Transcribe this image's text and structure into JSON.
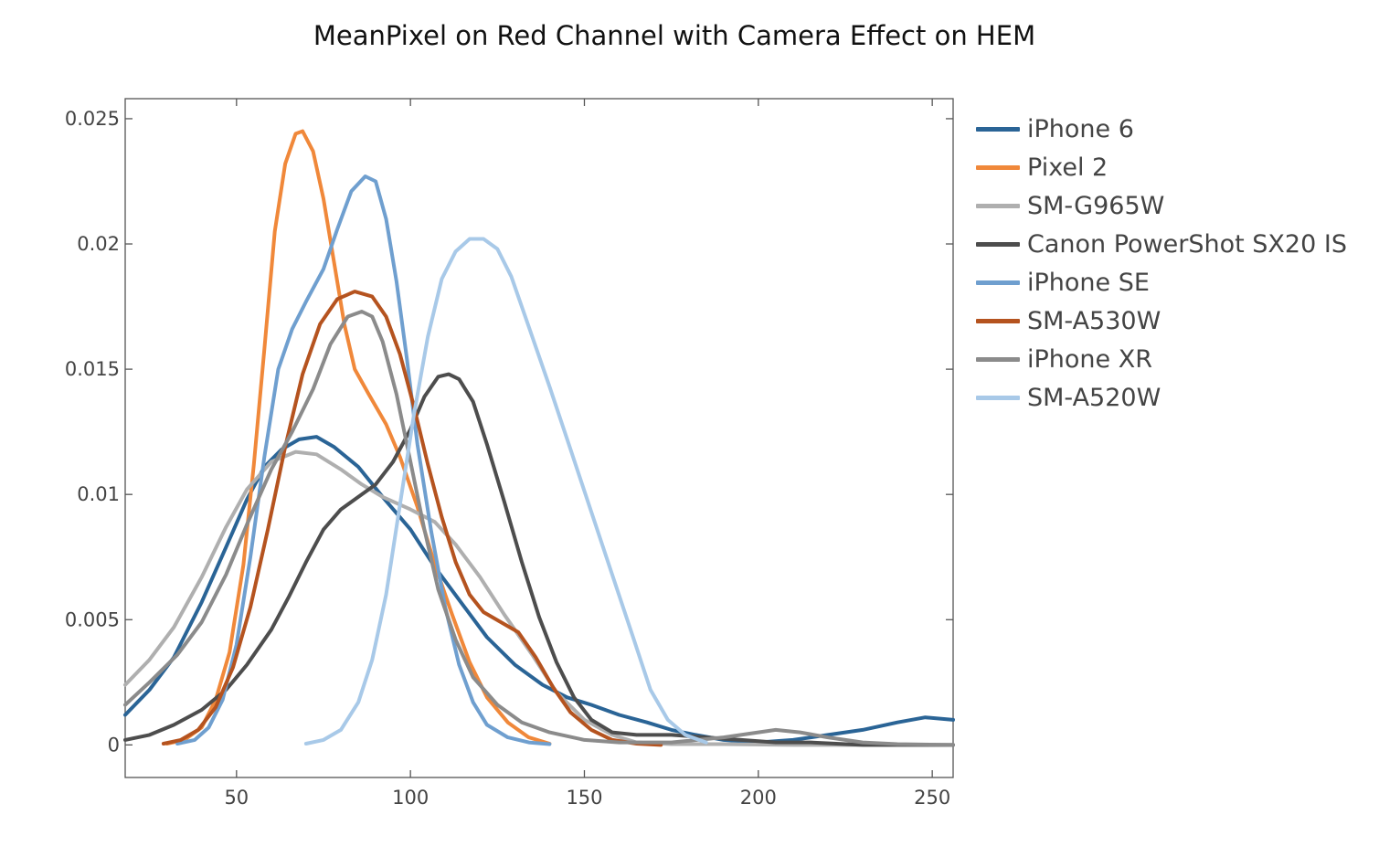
{
  "chart_data": {
    "type": "line",
    "title": "MeanPixel on Red Channel with Camera Effect on HEM",
    "xlabel": "",
    "ylabel": "",
    "xlim": [
      18,
      256
    ],
    "ylim": [
      -0.0013,
      0.0258
    ],
    "x_ticks": [
      50,
      100,
      150,
      200,
      250
    ],
    "y_ticks": [
      0,
      0.005,
      0.01,
      0.015,
      0.02,
      0.025
    ],
    "x_tick_labels": [
      "50",
      "100",
      "150",
      "200",
      "250"
    ],
    "y_tick_labels": [
      "0",
      "0.005",
      "0.01",
      "0.015",
      "0.02",
      "0.025"
    ],
    "grid": false,
    "legend_position": "right",
    "series": [
      {
        "name": "iPhone 6",
        "color": "#2a6496",
        "points": [
          [
            18,
            0.0012
          ],
          [
            25,
            0.0022
          ],
          [
            32,
            0.0035
          ],
          [
            40,
            0.0057
          ],
          [
            47,
            0.0079
          ],
          [
            53,
            0.0098
          ],
          [
            58,
            0.0111
          ],
          [
            63,
            0.0118
          ],
          [
            68,
            0.0122
          ],
          [
            73,
            0.0123
          ],
          [
            78,
            0.0119
          ],
          [
            85,
            0.0111
          ],
          [
            92,
            0.0099
          ],
          [
            100,
            0.0086
          ],
          [
            107,
            0.0071
          ],
          [
            115,
            0.0056
          ],
          [
            122,
            0.0043
          ],
          [
            130,
            0.0032
          ],
          [
            138,
            0.0024
          ],
          [
            145,
            0.0019
          ],
          [
            152,
            0.0016
          ],
          [
            160,
            0.0012
          ],
          [
            168,
            0.0009
          ],
          [
            175,
            0.0006
          ],
          [
            182,
            0.0004
          ],
          [
            190,
            0.0002
          ],
          [
            200,
            0.0001
          ],
          [
            210,
            0.0002
          ],
          [
            220,
            0.0004
          ],
          [
            230,
            0.0006
          ],
          [
            240,
            0.0009
          ],
          [
            248,
            0.0011
          ],
          [
            256,
            0.001
          ]
        ]
      },
      {
        "name": "Pixel 2",
        "color": "#f0883a",
        "points": [
          [
            30,
            5e-05
          ],
          [
            35,
            0.0002
          ],
          [
            40,
            0.0007
          ],
          [
            44,
            0.0018
          ],
          [
            48,
            0.0037
          ],
          [
            52,
            0.0072
          ],
          [
            55,
            0.0112
          ],
          [
            58,
            0.0158
          ],
          [
            61,
            0.0205
          ],
          [
            64,
            0.0232
          ],
          [
            67,
            0.0244
          ],
          [
            69,
            0.0245
          ],
          [
            72,
            0.0237
          ],
          [
            75,
            0.0218
          ],
          [
            78,
            0.0193
          ],
          [
            81,
            0.0168
          ],
          [
            84,
            0.015
          ],
          [
            88,
            0.014
          ],
          [
            93,
            0.0128
          ],
          [
            97,
            0.0115
          ],
          [
            102,
            0.0095
          ],
          [
            107,
            0.0072
          ],
          [
            112,
            0.0052
          ],
          [
            117,
            0.0033
          ],
          [
            122,
            0.0019
          ],
          [
            128,
            0.0009
          ],
          [
            134,
            0.0003
          ],
          [
            140,
            5e-05
          ]
        ]
      },
      {
        "name": "SM-G965W",
        "color": "#afafaf",
        "points": [
          [
            18,
            0.0024
          ],
          [
            25,
            0.0034
          ],
          [
            32,
            0.0047
          ],
          [
            40,
            0.0067
          ],
          [
            47,
            0.0087
          ],
          [
            53,
            0.0102
          ],
          [
            60,
            0.0113
          ],
          [
            67,
            0.0117
          ],
          [
            73,
            0.0116
          ],
          [
            80,
            0.011
          ],
          [
            86,
            0.0104
          ],
          [
            92,
            0.0099
          ],
          [
            100,
            0.0094
          ],
          [
            107,
            0.0089
          ],
          [
            113,
            0.008
          ],
          [
            120,
            0.0067
          ],
          [
            127,
            0.0052
          ],
          [
            135,
            0.0036
          ],
          [
            142,
            0.0021
          ],
          [
            150,
            0.001
          ],
          [
            158,
            0.0004
          ],
          [
            165,
            0.0001
          ],
          [
            175,
            3e-05
          ],
          [
            190,
            3e-05
          ],
          [
            210,
            0.0
          ],
          [
            240,
            0.0
          ],
          [
            256,
            0.0
          ]
        ]
      },
      {
        "name": "Canon PowerShot SX20 IS",
        "color": "#4d4d4d",
        "points": [
          [
            18,
            0.0002
          ],
          [
            25,
            0.0004
          ],
          [
            32,
            0.0008
          ],
          [
            40,
            0.0014
          ],
          [
            47,
            0.0022
          ],
          [
            53,
            0.0032
          ],
          [
            60,
            0.0046
          ],
          [
            65,
            0.0059
          ],
          [
            70,
            0.0073
          ],
          [
            75,
            0.0086
          ],
          [
            80,
            0.0094
          ],
          [
            85,
            0.0099
          ],
          [
            90,
            0.0104
          ],
          [
            95,
            0.0113
          ],
          [
            100,
            0.0126
          ],
          [
            104,
            0.0139
          ],
          [
            108,
            0.0147
          ],
          [
            111,
            0.0148
          ],
          [
            114,
            0.0146
          ],
          [
            118,
            0.0137
          ],
          [
            122,
            0.012
          ],
          [
            127,
            0.0097
          ],
          [
            132,
            0.0073
          ],
          [
            137,
            0.0051
          ],
          [
            142,
            0.0033
          ],
          [
            147,
            0.0019
          ],
          [
            152,
            0.001
          ],
          [
            158,
            0.0005
          ],
          [
            165,
            0.0004
          ],
          [
            175,
            0.0004
          ],
          [
            185,
            0.0003
          ],
          [
            195,
            0.0002
          ],
          [
            205,
            0.0001
          ],
          [
            215,
            0.0001
          ],
          [
            230,
            0.0
          ],
          [
            256,
            0.0
          ]
        ]
      },
      {
        "name": "iPhone SE",
        "color": "#6f9fcf",
        "points": [
          [
            33,
            5e-05
          ],
          [
            38,
            0.0002
          ],
          [
            42,
            0.0007
          ],
          [
            46,
            0.0018
          ],
          [
            50,
            0.004
          ],
          [
            54,
            0.0075
          ],
          [
            58,
            0.0115
          ],
          [
            62,
            0.015
          ],
          [
            66,
            0.0166
          ],
          [
            70,
            0.0177
          ],
          [
            75,
            0.019
          ],
          [
            79,
            0.0206
          ],
          [
            83,
            0.0221
          ],
          [
            87,
            0.0227
          ],
          [
            90,
            0.0225
          ],
          [
            93,
            0.021
          ],
          [
            96,
            0.0185
          ],
          [
            99,
            0.0154
          ],
          [
            102,
            0.012
          ],
          [
            106,
            0.0085
          ],
          [
            110,
            0.0055
          ],
          [
            114,
            0.0032
          ],
          [
            118,
            0.0017
          ],
          [
            122,
            0.0008
          ],
          [
            128,
            0.0003
          ],
          [
            134,
            0.0001
          ],
          [
            140,
            3e-05
          ]
        ]
      },
      {
        "name": "SM-A530W",
        "color": "#b5531f",
        "points": [
          [
            29,
            5e-05
          ],
          [
            34,
            0.0002
          ],
          [
            39,
            0.0006
          ],
          [
            44,
            0.0015
          ],
          [
            49,
            0.0031
          ],
          [
            54,
            0.0055
          ],
          [
            59,
            0.0086
          ],
          [
            64,
            0.0119
          ],
          [
            69,
            0.0148
          ],
          [
            74,
            0.0168
          ],
          [
            79,
            0.0178
          ],
          [
            84,
            0.0181
          ],
          [
            89,
            0.0179
          ],
          [
            93,
            0.0171
          ],
          [
            97,
            0.0156
          ],
          [
            101,
            0.0135
          ],
          [
            105,
            0.0112
          ],
          [
            109,
            0.0091
          ],
          [
            113,
            0.0073
          ],
          [
            117,
            0.006
          ],
          [
            121,
            0.0053
          ],
          [
            126,
            0.0049
          ],
          [
            131,
            0.0045
          ],
          [
            136,
            0.0035
          ],
          [
            141,
            0.0023
          ],
          [
            146,
            0.0013
          ],
          [
            152,
            0.0006
          ],
          [
            158,
            0.0002
          ],
          [
            165,
            5e-05
          ],
          [
            172,
            0.0
          ]
        ]
      },
      {
        "name": "iPhone XR",
        "color": "#8b8b8b",
        "points": [
          [
            18,
            0.0016
          ],
          [
            25,
            0.0025
          ],
          [
            33,
            0.0036
          ],
          [
            40,
            0.0049
          ],
          [
            47,
            0.0068
          ],
          [
            53,
            0.0088
          ],
          [
            60,
            0.011
          ],
          [
            66,
            0.0125
          ],
          [
            72,
            0.0142
          ],
          [
            77,
            0.016
          ],
          [
            82,
            0.0171
          ],
          [
            86,
            0.0173
          ],
          [
            89,
            0.0171
          ],
          [
            92,
            0.0161
          ],
          [
            96,
            0.014
          ],
          [
            100,
            0.0113
          ],
          [
            104,
            0.0086
          ],
          [
            108,
            0.0062
          ],
          [
            113,
            0.0042
          ],
          [
            118,
            0.0027
          ],
          [
            125,
            0.0016
          ],
          [
            132,
            0.0009
          ],
          [
            140,
            0.0005
          ],
          [
            150,
            0.0002
          ],
          [
            160,
            0.0001
          ],
          [
            175,
            0.0001
          ],
          [
            190,
            0.0003
          ],
          [
            200,
            0.0005
          ],
          [
            205,
            0.0006
          ],
          [
            212,
            0.0005
          ],
          [
            220,
            0.0003
          ],
          [
            230,
            0.0001
          ],
          [
            240,
            3e-05
          ],
          [
            256,
            0.0
          ]
        ]
      },
      {
        "name": "SM-A520W",
        "color": "#a8c9e8",
        "points": [
          [
            70,
            5e-05
          ],
          [
            75,
            0.0002
          ],
          [
            80,
            0.0006
          ],
          [
            85,
            0.0017
          ],
          [
            89,
            0.0034
          ],
          [
            93,
            0.006
          ],
          [
            97,
            0.0096
          ],
          [
            101,
            0.0132
          ],
          [
            105,
            0.0163
          ],
          [
            109,
            0.0186
          ],
          [
            113,
            0.0197
          ],
          [
            117,
            0.0202
          ],
          [
            121,
            0.0202
          ],
          [
            125,
            0.0198
          ],
          [
            129,
            0.0187
          ],
          [
            134,
            0.0167
          ],
          [
            140,
            0.0143
          ],
          [
            146,
            0.0118
          ],
          [
            152,
            0.0093
          ],
          [
            158,
            0.0068
          ],
          [
            164,
            0.0043
          ],
          [
            169,
            0.0022
          ],
          [
            174,
            0.001
          ],
          [
            179,
            0.0004
          ],
          [
            185,
            0.0001
          ]
        ]
      }
    ]
  }
}
